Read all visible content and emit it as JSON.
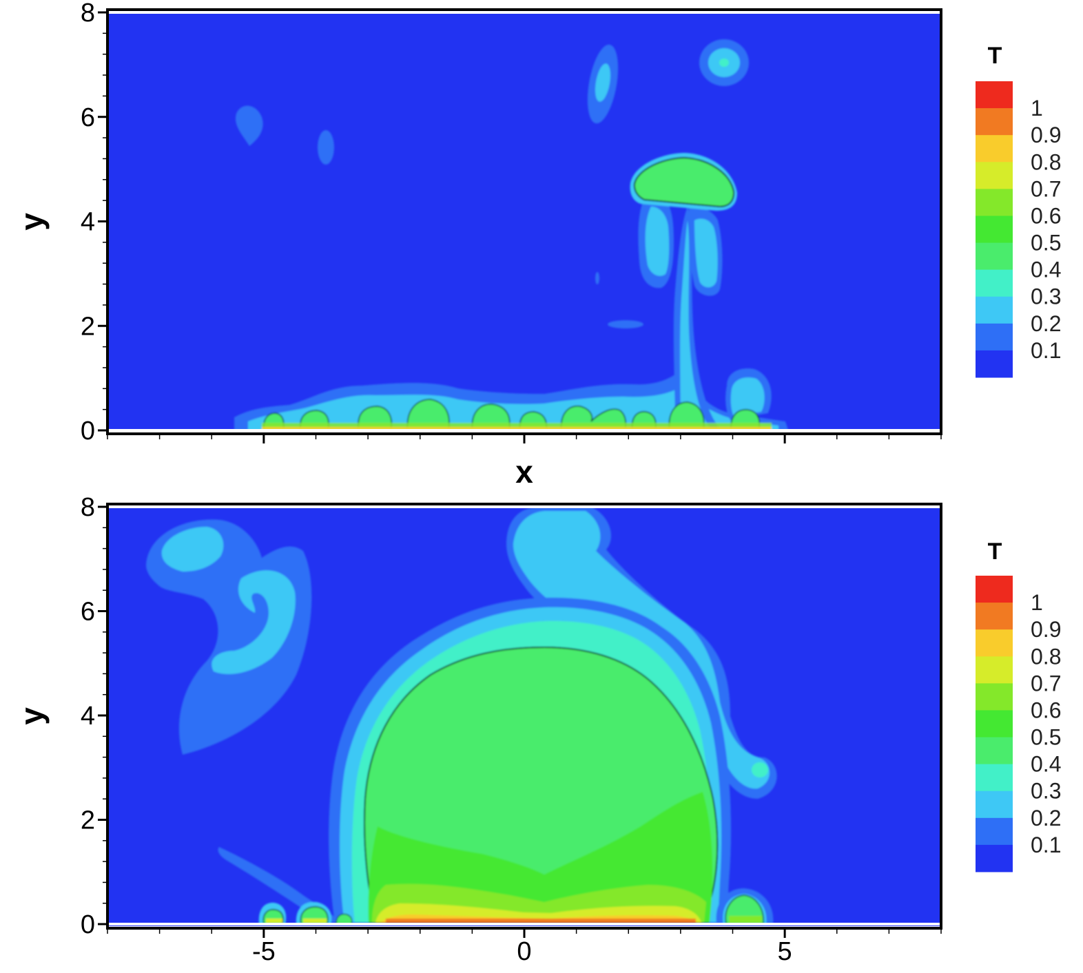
{
  "chart_data": [
    {
      "type": "heatmap",
      "panel": "top",
      "xlabel": "x",
      "ylabel": "y",
      "xlim": [
        -8,
        8
      ],
      "ylim": [
        0,
        8
      ],
      "x_ticks": [
        {
          "value": -5,
          "label": ""
        },
        {
          "value": 0,
          "label": ""
        },
        {
          "value": 5,
          "label": ""
        }
      ],
      "y_ticks": [
        {
          "value": 0,
          "label": "0"
        },
        {
          "value": 2,
          "label": "2"
        },
        {
          "value": 4,
          "label": "4"
        },
        {
          "value": 6,
          "label": "6"
        },
        {
          "value": 8,
          "label": "8"
        }
      ],
      "colorbar": {
        "title": "T",
        "levels": [
          0.1,
          0.2,
          0.3,
          0.4,
          0.5,
          0.6,
          0.7,
          0.8,
          0.9,
          1
        ],
        "labels": [
          "0.1",
          "0.2",
          "0.3",
          "0.4",
          "0.5",
          "0.6",
          "0.7",
          "0.8",
          "0.9",
          "1"
        ]
      },
      "features": [
        {
          "kind": "cap_bubble",
          "x": 3.0,
          "y": 4.7,
          "T": 0.45,
          "rx": 1.9,
          "ry": 0.75
        },
        {
          "kind": "plume_stem",
          "x": 3.05,
          "y_bottom": 0.3,
          "y_top": 4.0,
          "T": 0.25
        },
        {
          "kind": "vortex_blob",
          "x": 3.9,
          "y": 7.0,
          "T": 0.25
        },
        {
          "kind": "vortex_blob",
          "x": 1.5,
          "y": 6.7,
          "T": 0.25
        },
        {
          "kind": "vortex_blob",
          "x": -5.3,
          "y": 5.9,
          "T": 0.2
        },
        {
          "kind": "vortex_blob",
          "x": -3.8,
          "y": 5.4,
          "T": 0.25
        },
        {
          "kind": "vortex_blob",
          "x": 4.2,
          "y": 0.7,
          "T": 0.25
        },
        {
          "kind": "wall_bubbles",
          "x": [
            -4.7,
            -4.0,
            -2.85,
            -1.8,
            -0.6,
            0.2,
            1.05,
            1.65,
            2.3,
            3.1,
            4.3
          ],
          "T": 0.5
        }
      ]
    },
    {
      "type": "heatmap",
      "panel": "bottom",
      "xlabel": "",
      "ylabel": "y",
      "xlim": [
        -8,
        8
      ],
      "ylim": [
        0,
        8
      ],
      "x_ticks": [
        {
          "value": -5,
          "label": "-5"
        },
        {
          "value": 0,
          "label": "0"
        },
        {
          "value": 5,
          "label": "5"
        }
      ],
      "y_ticks": [
        {
          "value": 0,
          "label": "0"
        },
        {
          "value": 2,
          "label": "2"
        },
        {
          "value": 4,
          "label": "4"
        },
        {
          "value": 6,
          "label": "6"
        },
        {
          "value": 8,
          "label": "8"
        }
      ],
      "colorbar": {
        "title": "T",
        "levels": [
          0.1,
          0.2,
          0.3,
          0.4,
          0.5,
          0.6,
          0.7,
          0.8,
          0.9,
          1
        ],
        "labels": [
          "0.1",
          "0.2",
          "0.3",
          "0.4",
          "0.5",
          "0.6",
          "0.7",
          "0.8",
          "0.9",
          "1"
        ]
      },
      "features": [
        {
          "kind": "large_bubble",
          "x": 0.4,
          "y_top": 5.3,
          "x_left": -3.2,
          "x_right": 3.7,
          "T": 0.45
        },
        {
          "kind": "thermal_plume",
          "x": 1.5,
          "y": 7.5,
          "T": 0.25
        },
        {
          "kind": "vortex",
          "x": -6.0,
          "y": 6.2,
          "T": 0.15
        },
        {
          "kind": "vortex",
          "x": -5.2,
          "y": 5.0,
          "T": 0.2
        },
        {
          "kind": "wall_bubbles",
          "x": [
            -4.8,
            -4.0,
            -3.4,
            4.3
          ],
          "T": 0.5
        }
      ]
    }
  ],
  "colors": {
    "background": "#2233f2",
    "levels": [
      "#2233f2",
      "#2e6ff6",
      "#3ec8f5",
      "#42f0c8",
      "#4aec6c",
      "#44e832",
      "#84e82a",
      "#d6ec2a",
      "#f9cc2c",
      "#f17a22",
      "#ee2a1e"
    ]
  }
}
